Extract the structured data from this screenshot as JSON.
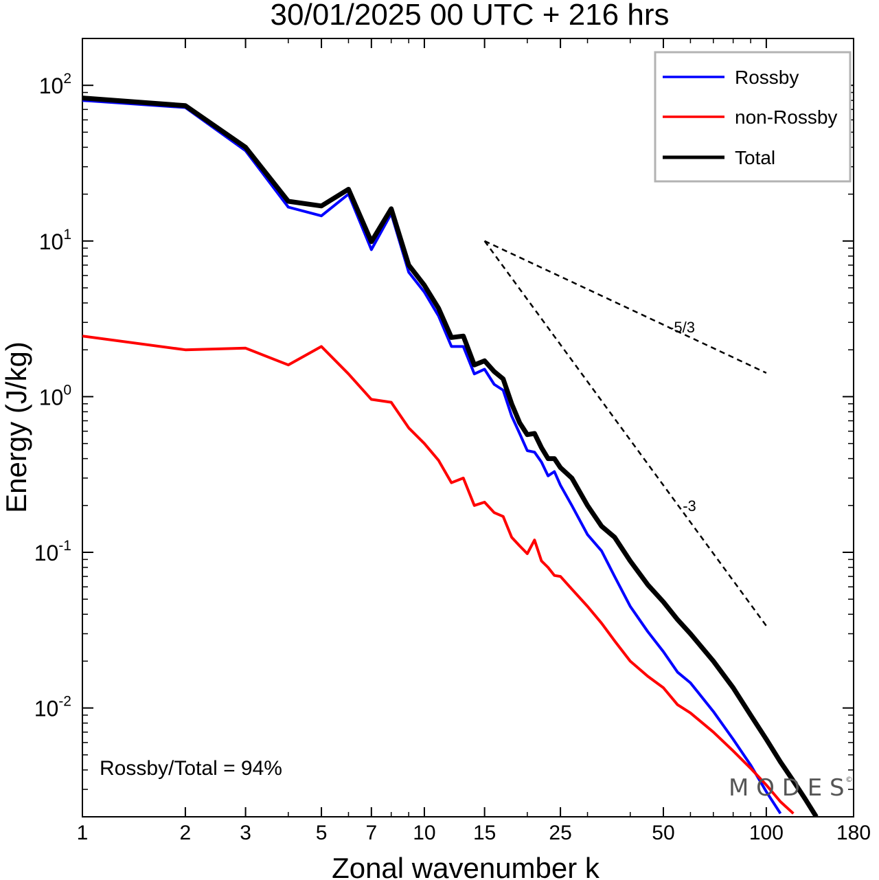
{
  "chart_data": {
    "type": "line",
    "title": "30/01/2025  00 UTC  + 216 hrs",
    "xlabel": "Zonal wavenumber k",
    "ylabel": "Energy (J/kg)",
    "xscale": "log",
    "yscale": "log",
    "xlim": [
      1,
      180
    ],
    "ylim": [
      0.002,
      200
    ],
    "grid": false,
    "legend_position": "top-right",
    "x_ticks": [
      1,
      2,
      3,
      5,
      7,
      10,
      15,
      25,
      50,
      100,
      180
    ],
    "x_tick_labels": [
      "1",
      "2",
      "3",
      "5",
      "7",
      "10",
      "15",
      "25",
      "50",
      "100",
      "180"
    ],
    "y_ticks": [
      {
        "value": 100,
        "base": "10",
        "exp": "2"
      },
      {
        "value": 10,
        "base": "10",
        "exp": "1"
      },
      {
        "value": 1,
        "base": "10",
        "exp": "0"
      },
      {
        "value": 0.1,
        "base": "10",
        "exp": "-1"
      },
      {
        "value": 0.01,
        "base": "10",
        "exp": "-2"
      }
    ],
    "series": [
      {
        "name": "Rossby",
        "color": "#0000ff",
        "x": [
          1,
          2,
          3,
          4,
          5,
          6,
          7,
          8,
          9,
          10,
          11,
          12,
          13,
          14,
          15,
          16,
          17,
          18,
          19,
          20,
          21,
          22,
          23,
          24,
          25,
          27,
          30,
          33,
          36,
          40,
          45,
          50,
          55,
          60,
          70,
          80,
          90,
          100,
          110
        ],
        "values": [
          80,
          72,
          38,
          16.5,
          14.5,
          20,
          8.8,
          15,
          6.3,
          4.7,
          3.3,
          2.1,
          2.1,
          1.4,
          1.5,
          1.2,
          1.1,
          0.75,
          0.58,
          0.45,
          0.44,
          0.38,
          0.31,
          0.33,
          0.27,
          0.2,
          0.13,
          0.102,
          0.07,
          0.045,
          0.031,
          0.023,
          0.017,
          0.0145,
          0.0095,
          0.0063,
          0.0043,
          0.0029,
          0.0021
        ]
      },
      {
        "name": "non-Rossby",
        "color": "#ff0000",
        "x": [
          1,
          2,
          3,
          4,
          5,
          6,
          7,
          8,
          9,
          10,
          11,
          12,
          13,
          14,
          15,
          16,
          17,
          18,
          19,
          20,
          21,
          22,
          23,
          24,
          25,
          27,
          30,
          33,
          36,
          40,
          45,
          50,
          55,
          60,
          70,
          80,
          90,
          100,
          110,
          120
        ],
        "values": [
          2.45,
          2.0,
          2.05,
          1.6,
          2.1,
          1.4,
          0.96,
          0.92,
          0.63,
          0.5,
          0.39,
          0.28,
          0.3,
          0.2,
          0.21,
          0.18,
          0.17,
          0.125,
          0.11,
          0.098,
          0.12,
          0.088,
          0.08,
          0.071,
          0.07,
          0.058,
          0.045,
          0.035,
          0.027,
          0.02,
          0.016,
          0.0135,
          0.0105,
          0.0093,
          0.007,
          0.0053,
          0.0041,
          0.0032,
          0.0025,
          0.0021
        ]
      },
      {
        "name": "Total",
        "color": "#000000",
        "x": [
          1,
          2,
          3,
          4,
          5,
          6,
          7,
          8,
          9,
          10,
          11,
          12,
          13,
          14,
          15,
          16,
          17,
          18,
          19,
          20,
          21,
          22,
          23,
          24,
          25,
          27,
          30,
          33,
          36,
          40,
          45,
          50,
          55,
          60,
          70,
          80,
          90,
          100,
          110,
          120,
          130,
          140
        ],
        "values": [
          83,
          74,
          40,
          18,
          16.8,
          21.5,
          9.9,
          16.1,
          7,
          5.2,
          3.7,
          2.4,
          2.45,
          1.6,
          1.7,
          1.45,
          1.3,
          0.9,
          0.68,
          0.57,
          0.58,
          0.47,
          0.4,
          0.4,
          0.35,
          0.3,
          0.2,
          0.147,
          0.125,
          0.088,
          0.062,
          0.048,
          0.037,
          0.03,
          0.02,
          0.0135,
          0.009,
          0.0063,
          0.0045,
          0.0034,
          0.0026,
          0.002
        ]
      }
    ],
    "reference_slopes": [
      {
        "label": "-5/3",
        "x": [
          15,
          100
        ],
        "y": [
          10,
          1.42
        ]
      },
      {
        "label": "-3",
        "x": [
          15,
          100
        ],
        "y": [
          10,
          0.0337
        ]
      }
    ],
    "annotations": {
      "ratio_text": "Rossby/Total = 94%",
      "watermark": "M O D E S",
      "copyright": "©"
    }
  }
}
